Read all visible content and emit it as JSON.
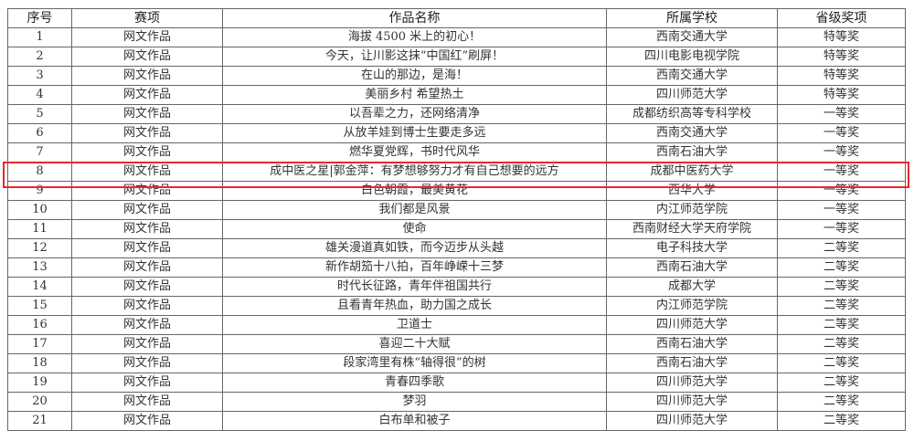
{
  "highlight_color": "#e8282e",
  "headers": [
    "序号",
    "赛项",
    "作品名称",
    "所属学校",
    "省级奖项"
  ],
  "rows": [
    [
      "1",
      "网文作品",
      "海拔 4500 米上的初心！",
      "西南交通大学",
      "特等奖"
    ],
    [
      "2",
      "网文作品",
      "今天，让川影这抹“中国红”刷屏！",
      "四川电影电视学院",
      "特等奖"
    ],
    [
      "3",
      "网文作品",
      "在山的那边，是海！",
      "西南交通大学",
      "特等奖"
    ],
    [
      "4",
      "网文作品",
      "美丽乡村 希望热土",
      "四川师范大学",
      "特等奖"
    ],
    [
      "5",
      "网文作品",
      "以吾辈之力，还网络清净",
      "成都纺织高等专科学校",
      "一等奖"
    ],
    [
      "6",
      "网文作品",
      "从放羊娃到博士生要走多远",
      "西南交通大学",
      "一等奖"
    ],
    [
      "7",
      "网文作品",
      "燃华夏党辉，书时代风华",
      "西南石油大学",
      "一等奖"
    ],
    [
      "8",
      "网文作品",
      "成中医之星|郭金萍：有梦想够努力才有自己想要的远方",
      "成都中医药大学",
      "一等奖"
    ],
    [
      "9",
      "网文作品",
      "白色朝霞，最美黄花",
      "西华大学",
      "一等奖"
    ],
    [
      "10",
      "网文作品",
      "我们都是风景",
      "内江师范学院",
      "一等奖"
    ],
    [
      "11",
      "网文作品",
      "使命",
      "西南财经大学天府学院",
      "一等奖"
    ],
    [
      "12",
      "网文作品",
      "雄关漫道真如铁，而今迈步从头越",
      "电子科技大学",
      "二等奖"
    ],
    [
      "13",
      "网文作品",
      "新作胡笳十八拍，百年峥嵘十三梦",
      "西南石油大学",
      "二等奖"
    ],
    [
      "14",
      "网文作品",
      "时代长征路，青年伴祖国共行",
      "成都大学",
      "二等奖"
    ],
    [
      "15",
      "网文作品",
      "且看青年热血，助力国之成长",
      "内江师范学院",
      "二等奖"
    ],
    [
      "16",
      "网文作品",
      "卫道士",
      "四川师范大学",
      "二等奖"
    ],
    [
      "17",
      "网文作品",
      "喜迎二十大赋",
      "西南石油大学",
      "二等奖"
    ],
    [
      "18",
      "网文作品",
      "段家湾里有株“轴得很”的树",
      "西南石油大学",
      "二等奖"
    ],
    [
      "19",
      "网文作品",
      "青春四季歌",
      "四川师范大学",
      "二等奖"
    ],
    [
      "20",
      "网文作品",
      "梦羽",
      "四川师范大学",
      "二等奖"
    ],
    [
      "21",
      "网文作品",
      "白布单和被子",
      "四川师范大学",
      "二等奖"
    ]
  ]
}
